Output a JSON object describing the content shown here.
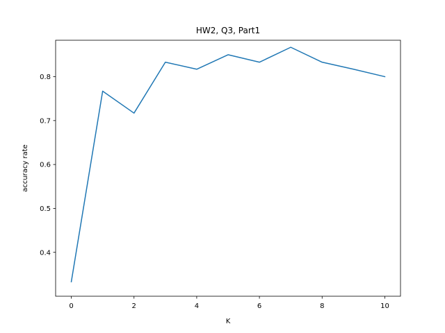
{
  "chart_data": {
    "type": "line",
    "title": "HW2, Q3, Part1",
    "xlabel": "K",
    "ylabel": "accuracy rate",
    "x": [
      0,
      1,
      2,
      3,
      4,
      5,
      6,
      7,
      8,
      9,
      10
    ],
    "series": [
      {
        "values": [
          0.333,
          0.767,
          0.717,
          0.833,
          0.817,
          0.85,
          0.833,
          0.867,
          0.833,
          0.817,
          0.8
        ],
        "color": "#1f77b4"
      }
    ],
    "xlim": [
      -0.5,
      10.5
    ],
    "ylim": [
      0.3,
      0.883
    ],
    "xticks": [
      0,
      2,
      4,
      6,
      8,
      10
    ],
    "yticks": [
      0.4,
      0.5,
      0.6,
      0.7,
      0.8
    ],
    "grid": false,
    "legend": "none"
  }
}
